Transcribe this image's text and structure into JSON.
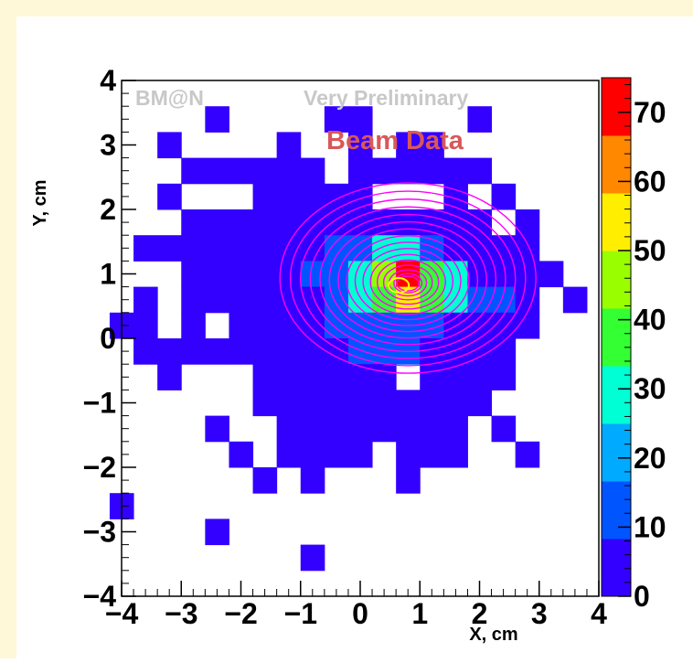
{
  "chart_data": {
    "type": "heatmap",
    "title": "",
    "xlabel": "X, cm",
    "ylabel": "Y, cm",
    "xlim": [
      -4,
      4
    ],
    "ylim": [
      -4,
      4
    ],
    "bin_width": 0.4,
    "x_ticks": [
      "−4",
      "−3",
      "−2",
      "−1",
      "0",
      "1",
      "2",
      "3",
      "4"
    ],
    "y_ticks": [
      "−4",
      "−3",
      "−2",
      "−1",
      "0",
      "1",
      "2",
      "3",
      "4"
    ],
    "annotations": [
      "BM@N",
      "Very Preliminary",
      "Beam Data"
    ],
    "colorbar": {
      "range": [
        0,
        75
      ],
      "tick_labels": [
        "0",
        "10",
        "20",
        "30",
        "40",
        "50",
        "60",
        "70"
      ],
      "colors": [
        "#3300ff",
        "#0055ff",
        "#00aaff",
        "#00ffd4",
        "#33ff33",
        "#99ff00",
        "#ffee00",
        "#ff8800",
        "#ff0000"
      ]
    },
    "bins": [
      [
        -2.4,
        3.4,
        5
      ],
      [
        -0.4,
        3.4,
        5
      ],
      [
        -0.0,
        3.4,
        5
      ],
      [
        2.0,
        3.4,
        5
      ],
      [
        -3.2,
        3.0,
        5
      ],
      [
        -1.2,
        3.0,
        5
      ],
      [
        0.0,
        3.0,
        5
      ],
      [
        0.8,
        3.0,
        5
      ],
      [
        1.2,
        3.0,
        5
      ],
      [
        -2.8,
        2.6,
        5
      ],
      [
        -2.4,
        2.6,
        5
      ],
      [
        -2.0,
        2.6,
        5
      ],
      [
        -1.6,
        2.6,
        5
      ],
      [
        -1.2,
        2.6,
        5
      ],
      [
        -0.8,
        2.6,
        5
      ],
      [
        0.0,
        2.6,
        5
      ],
      [
        0.4,
        2.6,
        5
      ],
      [
        0.8,
        2.6,
        5
      ],
      [
        1.2,
        2.6,
        5
      ],
      [
        1.6,
        2.6,
        5
      ],
      [
        2.0,
        2.6,
        5
      ],
      [
        -3.2,
        2.2,
        5
      ],
      [
        -1.6,
        2.2,
        5
      ],
      [
        -1.2,
        2.2,
        5
      ],
      [
        -0.8,
        2.2,
        5
      ],
      [
        -0.4,
        2.2,
        5
      ],
      [
        0.0,
        2.2,
        5
      ],
      [
        1.6,
        2.2,
        5
      ],
      [
        2.4,
        2.2,
        5
      ],
      [
        -2.8,
        1.8,
        5
      ],
      [
        -2.4,
        1.8,
        5
      ],
      [
        -2.0,
        1.8,
        5
      ],
      [
        -1.6,
        1.8,
        5
      ],
      [
        -1.2,
        1.8,
        5
      ],
      [
        -0.8,
        1.8,
        5
      ],
      [
        -0.4,
        1.8,
        5
      ],
      [
        0.0,
        1.8,
        5
      ],
      [
        0.4,
        1.8,
        5
      ],
      [
        0.8,
        1.8,
        5
      ],
      [
        1.2,
        1.8,
        5
      ],
      [
        1.6,
        1.8,
        5
      ],
      [
        2.0,
        1.8,
        5
      ],
      [
        2.8,
        1.8,
        5
      ],
      [
        -3.6,
        1.4,
        5
      ],
      [
        -3.2,
        1.4,
        5
      ],
      [
        -2.8,
        1.4,
        5
      ],
      [
        -2.4,
        1.4,
        5
      ],
      [
        -2.0,
        1.4,
        5
      ],
      [
        -1.6,
        1.4,
        5
      ],
      [
        -1.2,
        1.4,
        5
      ],
      [
        -0.8,
        1.4,
        5
      ],
      [
        -0.4,
        1.4,
        15
      ],
      [
        0.0,
        1.4,
        15
      ],
      [
        0.4,
        1.4,
        25
      ],
      [
        0.8,
        1.4,
        25
      ],
      [
        1.2,
        1.4,
        15
      ],
      [
        1.6,
        1.4,
        5
      ],
      [
        2.0,
        1.4,
        5
      ],
      [
        2.4,
        1.4,
        5
      ],
      [
        2.8,
        1.4,
        5
      ],
      [
        -2.8,
        1.0,
        5
      ],
      [
        -2.4,
        1.0,
        5
      ],
      [
        -2.0,
        1.0,
        5
      ],
      [
        -1.6,
        1.0,
        5
      ],
      [
        -1.2,
        1.0,
        5
      ],
      [
        -0.8,
        1.0,
        15
      ],
      [
        -0.4,
        1.0,
        15
      ],
      [
        0.0,
        1.0,
        25
      ],
      [
        0.4,
        1.0,
        45
      ],
      [
        0.8,
        1.0,
        72
      ],
      [
        1.2,
        1.0,
        35
      ],
      [
        1.6,
        1.0,
        25
      ],
      [
        2.0,
        1.0,
        5
      ],
      [
        2.4,
        1.0,
        5
      ],
      [
        2.8,
        1.0,
        5
      ],
      [
        3.2,
        1.0,
        5
      ],
      [
        -3.6,
        0.6,
        5
      ],
      [
        -2.8,
        0.6,
        5
      ],
      [
        -2.4,
        0.6,
        5
      ],
      [
        -2.0,
        0.6,
        5
      ],
      [
        -1.6,
        0.6,
        5
      ],
      [
        -1.2,
        0.6,
        5
      ],
      [
        -0.8,
        0.6,
        5
      ],
      [
        -0.4,
        0.6,
        15
      ],
      [
        0.0,
        0.6,
        25
      ],
      [
        0.4,
        0.6,
        35
      ],
      [
        0.8,
        0.6,
        55
      ],
      [
        1.2,
        0.6,
        35
      ],
      [
        1.6,
        0.6,
        25
      ],
      [
        2.0,
        0.6,
        15
      ],
      [
        2.4,
        0.6,
        15
      ],
      [
        2.8,
        0.6,
        5
      ],
      [
        3.6,
        0.6,
        5
      ],
      [
        -4.0,
        0.2,
        5
      ],
      [
        -3.6,
        0.2,
        5
      ],
      [
        -2.8,
        0.2,
        5
      ],
      [
        -2.0,
        0.2,
        5
      ],
      [
        -1.6,
        0.2,
        5
      ],
      [
        -1.2,
        0.2,
        5
      ],
      [
        -0.8,
        0.2,
        5
      ],
      [
        -0.4,
        0.2,
        15
      ],
      [
        0.0,
        0.2,
        15
      ],
      [
        0.4,
        0.2,
        15
      ],
      [
        0.8,
        0.2,
        15
      ],
      [
        1.2,
        0.2,
        15
      ],
      [
        1.6,
        0.2,
        5
      ],
      [
        2.0,
        0.2,
        5
      ],
      [
        2.4,
        0.2,
        5
      ],
      [
        2.8,
        0.2,
        5
      ],
      [
        -3.6,
        -0.2,
        5
      ],
      [
        -3.2,
        -0.2,
        5
      ],
      [
        -2.8,
        -0.2,
        5
      ],
      [
        -2.4,
        -0.2,
        5
      ],
      [
        -2.0,
        -0.2,
        5
      ],
      [
        -1.6,
        -0.2,
        5
      ],
      [
        -1.2,
        -0.2,
        5
      ],
      [
        -0.8,
        -0.2,
        5
      ],
      [
        -0.4,
        -0.2,
        5
      ],
      [
        0.0,
        -0.2,
        15
      ],
      [
        0.4,
        -0.2,
        15
      ],
      [
        0.8,
        -0.2,
        15
      ],
      [
        1.2,
        -0.2,
        5
      ],
      [
        1.6,
        -0.2,
        5
      ],
      [
        2.0,
        -0.2,
        5
      ],
      [
        2.4,
        -0.2,
        5
      ],
      [
        -3.2,
        -0.6,
        5
      ],
      [
        -1.6,
        -0.6,
        5
      ],
      [
        -1.2,
        -0.6,
        5
      ],
      [
        -0.8,
        -0.6,
        5
      ],
      [
        -0.4,
        -0.6,
        5
      ],
      [
        0.0,
        -0.6,
        5
      ],
      [
        0.4,
        -0.6,
        5
      ],
      [
        1.2,
        -0.6,
        5
      ],
      [
        1.6,
        -0.6,
        5
      ],
      [
        2.0,
        -0.6,
        5
      ],
      [
        2.4,
        -0.6,
        5
      ],
      [
        -1.6,
        -1.0,
        5
      ],
      [
        -1.2,
        -1.0,
        5
      ],
      [
        -0.8,
        -1.0,
        5
      ],
      [
        -0.4,
        -1.0,
        5
      ],
      [
        0.0,
        -1.0,
        5
      ],
      [
        0.4,
        -1.0,
        5
      ],
      [
        0.8,
        -1.0,
        5
      ],
      [
        1.2,
        -1.0,
        5
      ],
      [
        1.6,
        -1.0,
        5
      ],
      [
        2.0,
        -1.0,
        5
      ],
      [
        -2.4,
        -1.4,
        5
      ],
      [
        -1.2,
        -1.4,
        5
      ],
      [
        -0.8,
        -1.4,
        5
      ],
      [
        -0.4,
        -1.4,
        5
      ],
      [
        0.0,
        -1.4,
        5
      ],
      [
        0.4,
        -1.4,
        5
      ],
      [
        0.8,
        -1.4,
        5
      ],
      [
        1.2,
        -1.4,
        5
      ],
      [
        1.6,
        -1.4,
        5
      ],
      [
        2.4,
        -1.4,
        5
      ],
      [
        -2.0,
        -1.8,
        5
      ],
      [
        -1.2,
        -1.8,
        5
      ],
      [
        -0.8,
        -1.8,
        5
      ],
      [
        -0.4,
        -1.8,
        5
      ],
      [
        0.0,
        -1.8,
        5
      ],
      [
        0.8,
        -1.8,
        5
      ],
      [
        1.2,
        -1.8,
        5
      ],
      [
        1.6,
        -1.8,
        5
      ],
      [
        2.8,
        -1.8,
        5
      ],
      [
        -1.6,
        -2.2,
        5
      ],
      [
        -0.8,
        -2.2,
        5
      ],
      [
        0.8,
        -2.2,
        5
      ],
      [
        -4.0,
        -2.6,
        5
      ],
      [
        -2.4,
        -3.0,
        5
      ],
      [
        -0.8,
        -3.4,
        5
      ]
    ],
    "fit_contours": {
      "center": [
        0.8,
        0.85
      ],
      "levels": 16,
      "color": "#ff00ff"
    }
  }
}
